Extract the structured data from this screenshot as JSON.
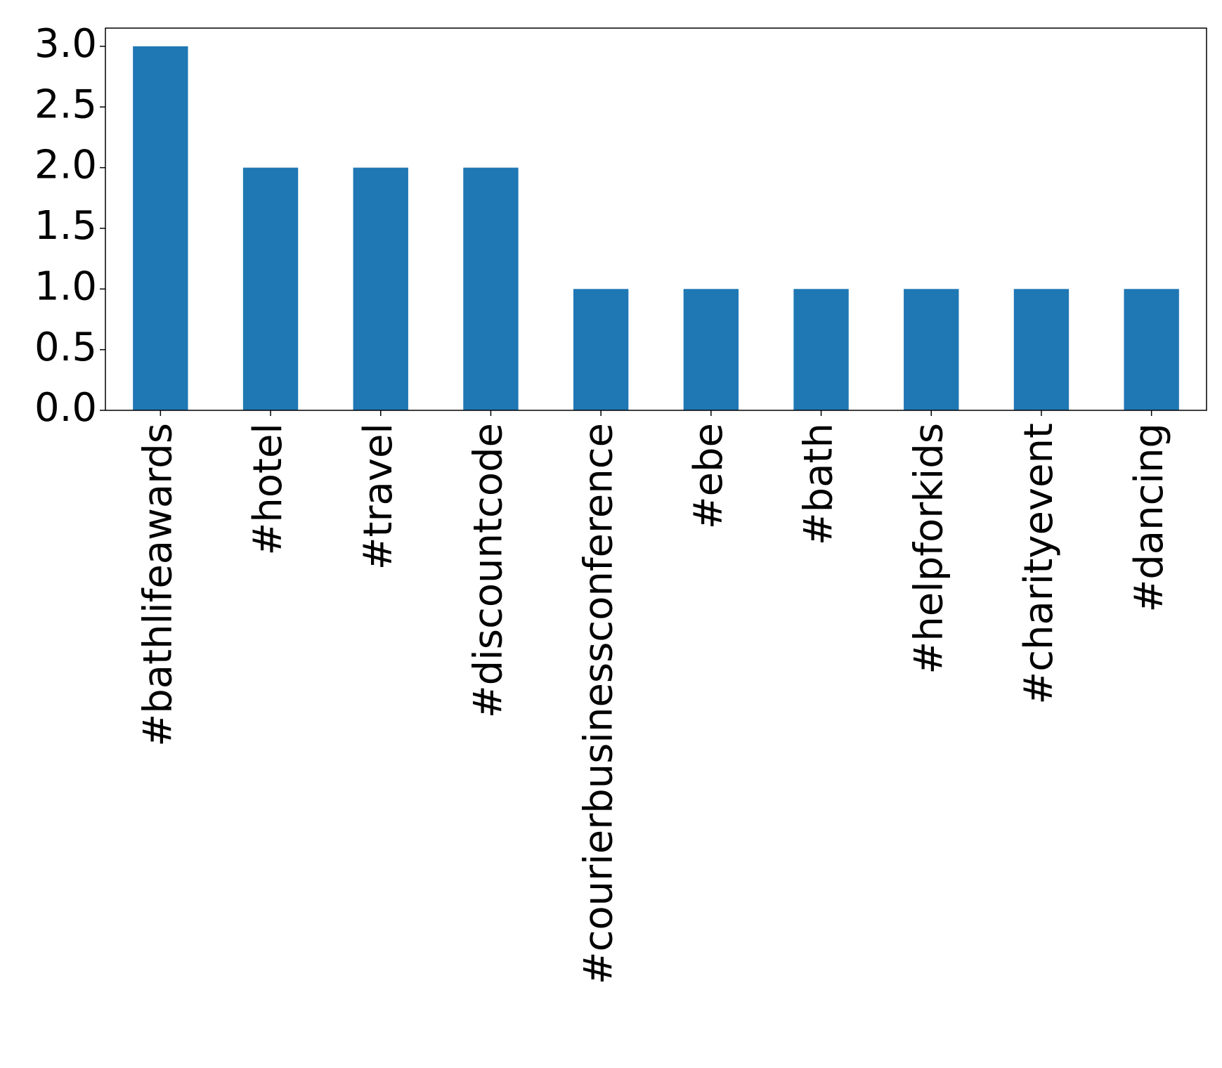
{
  "chart_data": {
    "type": "bar",
    "categories": [
      "#bathlifeawards",
      "#hotel",
      "#travel",
      "#discountcode",
      "#courierbusinessconference",
      "#ebe",
      "#bath",
      "#helpforkids",
      "#charityevent",
      "#dancing"
    ],
    "values": [
      3,
      2,
      2,
      2,
      1,
      1,
      1,
      1,
      1,
      1
    ],
    "color": "#1f77b4",
    "ylim": [
      0,
      3.15
    ],
    "yticks": [
      {
        "value": 0,
        "label": "0.0"
      },
      {
        "value": 0.5,
        "label": "0.5"
      },
      {
        "value": 1,
        "label": "1.0"
      },
      {
        "value": 1.5,
        "label": "1.5"
      },
      {
        "value": 2,
        "label": "2.0"
      },
      {
        "value": 2.5,
        "label": "2.5"
      },
      {
        "value": 3,
        "label": "3.0"
      }
    ],
    "grid": false
  }
}
